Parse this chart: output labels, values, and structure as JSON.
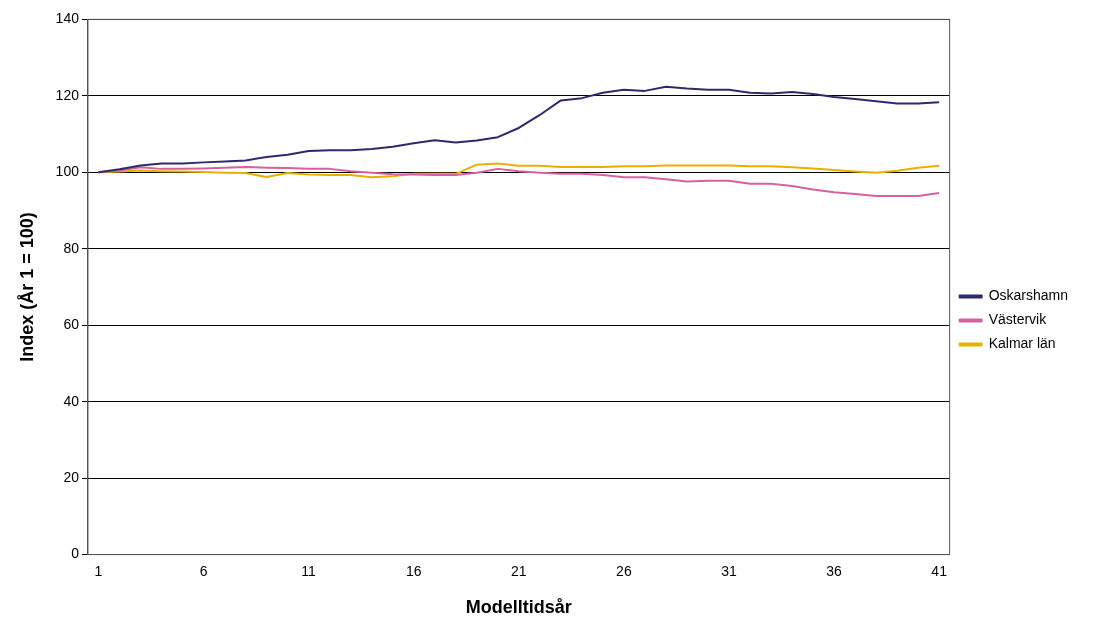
{
  "chart_data": {
    "type": "line",
    "xlabel": "Modelltidsår",
    "ylabel": "Index (År 1 = 100)",
    "categories": [
      "1",
      null,
      null,
      null,
      null,
      "6",
      null,
      null,
      null,
      null,
      "11",
      null,
      null,
      null,
      null,
      "16",
      null,
      null,
      null,
      null,
      "21",
      null,
      null,
      null,
      null,
      "26",
      null,
      null,
      null,
      null,
      "31",
      null,
      null,
      null,
      null,
      "36",
      null,
      null,
      null,
      null,
      "41"
    ],
    "series": [
      {
        "name": "Oskarshamn",
        "color": "#2e2a6e",
        "values": [
          100,
          100.8,
          101.8,
          102.3,
          102.3,
          102.6,
          102.8,
          103.1,
          104,
          104.6,
          105.6,
          105.8,
          105.8,
          106.1,
          106.7,
          107.6,
          108.4,
          107.8,
          108.3,
          109.2,
          111.6,
          115,
          118.8,
          119.4,
          120.8,
          121.6,
          121.3,
          122.4,
          121.9,
          121.6,
          121.6,
          120.8,
          120.6,
          121,
          120.5,
          119.7,
          119.2,
          118.6,
          118,
          118,
          118.3
        ]
      },
      {
        "name": "Västervik",
        "color": "#d9609f",
        "values": [
          100,
          100.5,
          101.3,
          100.9,
          100.9,
          101,
          101.2,
          101.4,
          101.2,
          101.1,
          100.9,
          100.9,
          100.3,
          99.9,
          99.5,
          99.4,
          99.3,
          99.3,
          99.9,
          100.9,
          100.3,
          99.9,
          99.6,
          99.6,
          99.3,
          98.7,
          98.7,
          98.2,
          97.6,
          97.8,
          97.8,
          97,
          97,
          96.4,
          95.5,
          94.8,
          94.3,
          93.8,
          93.8,
          93.8,
          94.6
        ]
      },
      {
        "name": "Kalmar län",
        "color": "#e8b000",
        "values": [
          100,
          100.2,
          100.5,
          100.3,
          100.2,
          100.1,
          99.9,
          99.8,
          98.8,
          99.8,
          99.4,
          99.3,
          99.3,
          98.7,
          99,
          99.6,
          99.6,
          99.6,
          102,
          102.3,
          101.7,
          101.7,
          101.4,
          101.4,
          101.4,
          101.6,
          101.6,
          101.8,
          101.8,
          101.8,
          101.8,
          101.6,
          101.6,
          101.3,
          101,
          100.6,
          100.2,
          99.9,
          100.4,
          101.2,
          101.7
        ]
      }
    ],
    "ylim": [
      0,
      140
    ],
    "yticks": [
      0,
      20,
      40,
      60,
      80,
      100,
      120,
      140
    ],
    "grid": "y",
    "legend": "right",
    "marker": "none",
    "line_style": "solid"
  }
}
